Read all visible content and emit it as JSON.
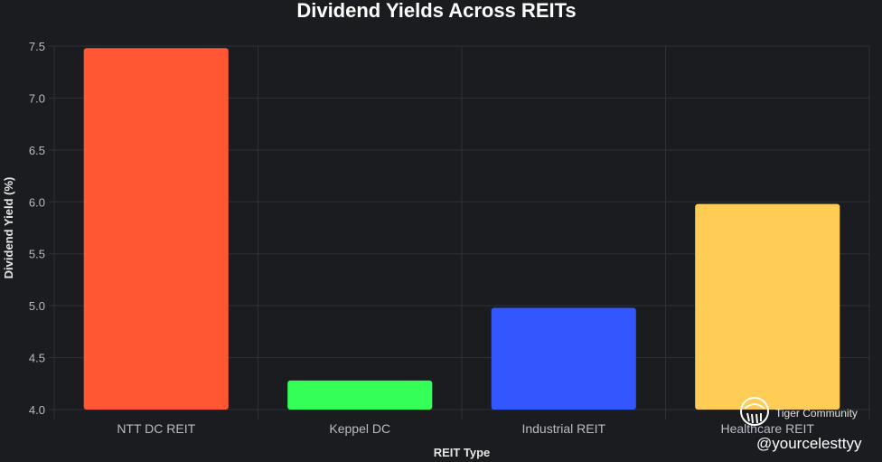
{
  "chart_data": {
    "type": "bar",
    "title": "Dividend Yields Across REITs",
    "xlabel": "REIT Type",
    "ylabel": "Dividend Yield (%)",
    "categories": [
      "NTT DC REIT",
      "Keppel DC",
      "Industrial REIT",
      "Healthcare REIT"
    ],
    "values": [
      7.48,
      4.28,
      4.98,
      5.98
    ],
    "colors": [
      "#ff5733",
      "#33ff57",
      "#3357ff",
      "#ffcc55"
    ],
    "ylim": [
      4.0,
      7.5
    ],
    "yticks": [
      4.0,
      4.5,
      5.0,
      5.5,
      6.0,
      6.5,
      7.0,
      7.5
    ],
    "ytick_labels": [
      "4.0",
      "4.5",
      "5.0",
      "5.5",
      "6.0",
      "6.5",
      "7.0",
      "7.5"
    ],
    "grid": true,
    "legend": "none"
  },
  "watermark": {
    "brand": "Tiger Community",
    "handle": "@yourcelesttyy",
    "icon": "tiger-community-logo-icon"
  },
  "colors": {
    "background": "#1b1c20",
    "grid": "#2e3036",
    "text": "#ffffff",
    "tick": "#b9bcc2"
  }
}
